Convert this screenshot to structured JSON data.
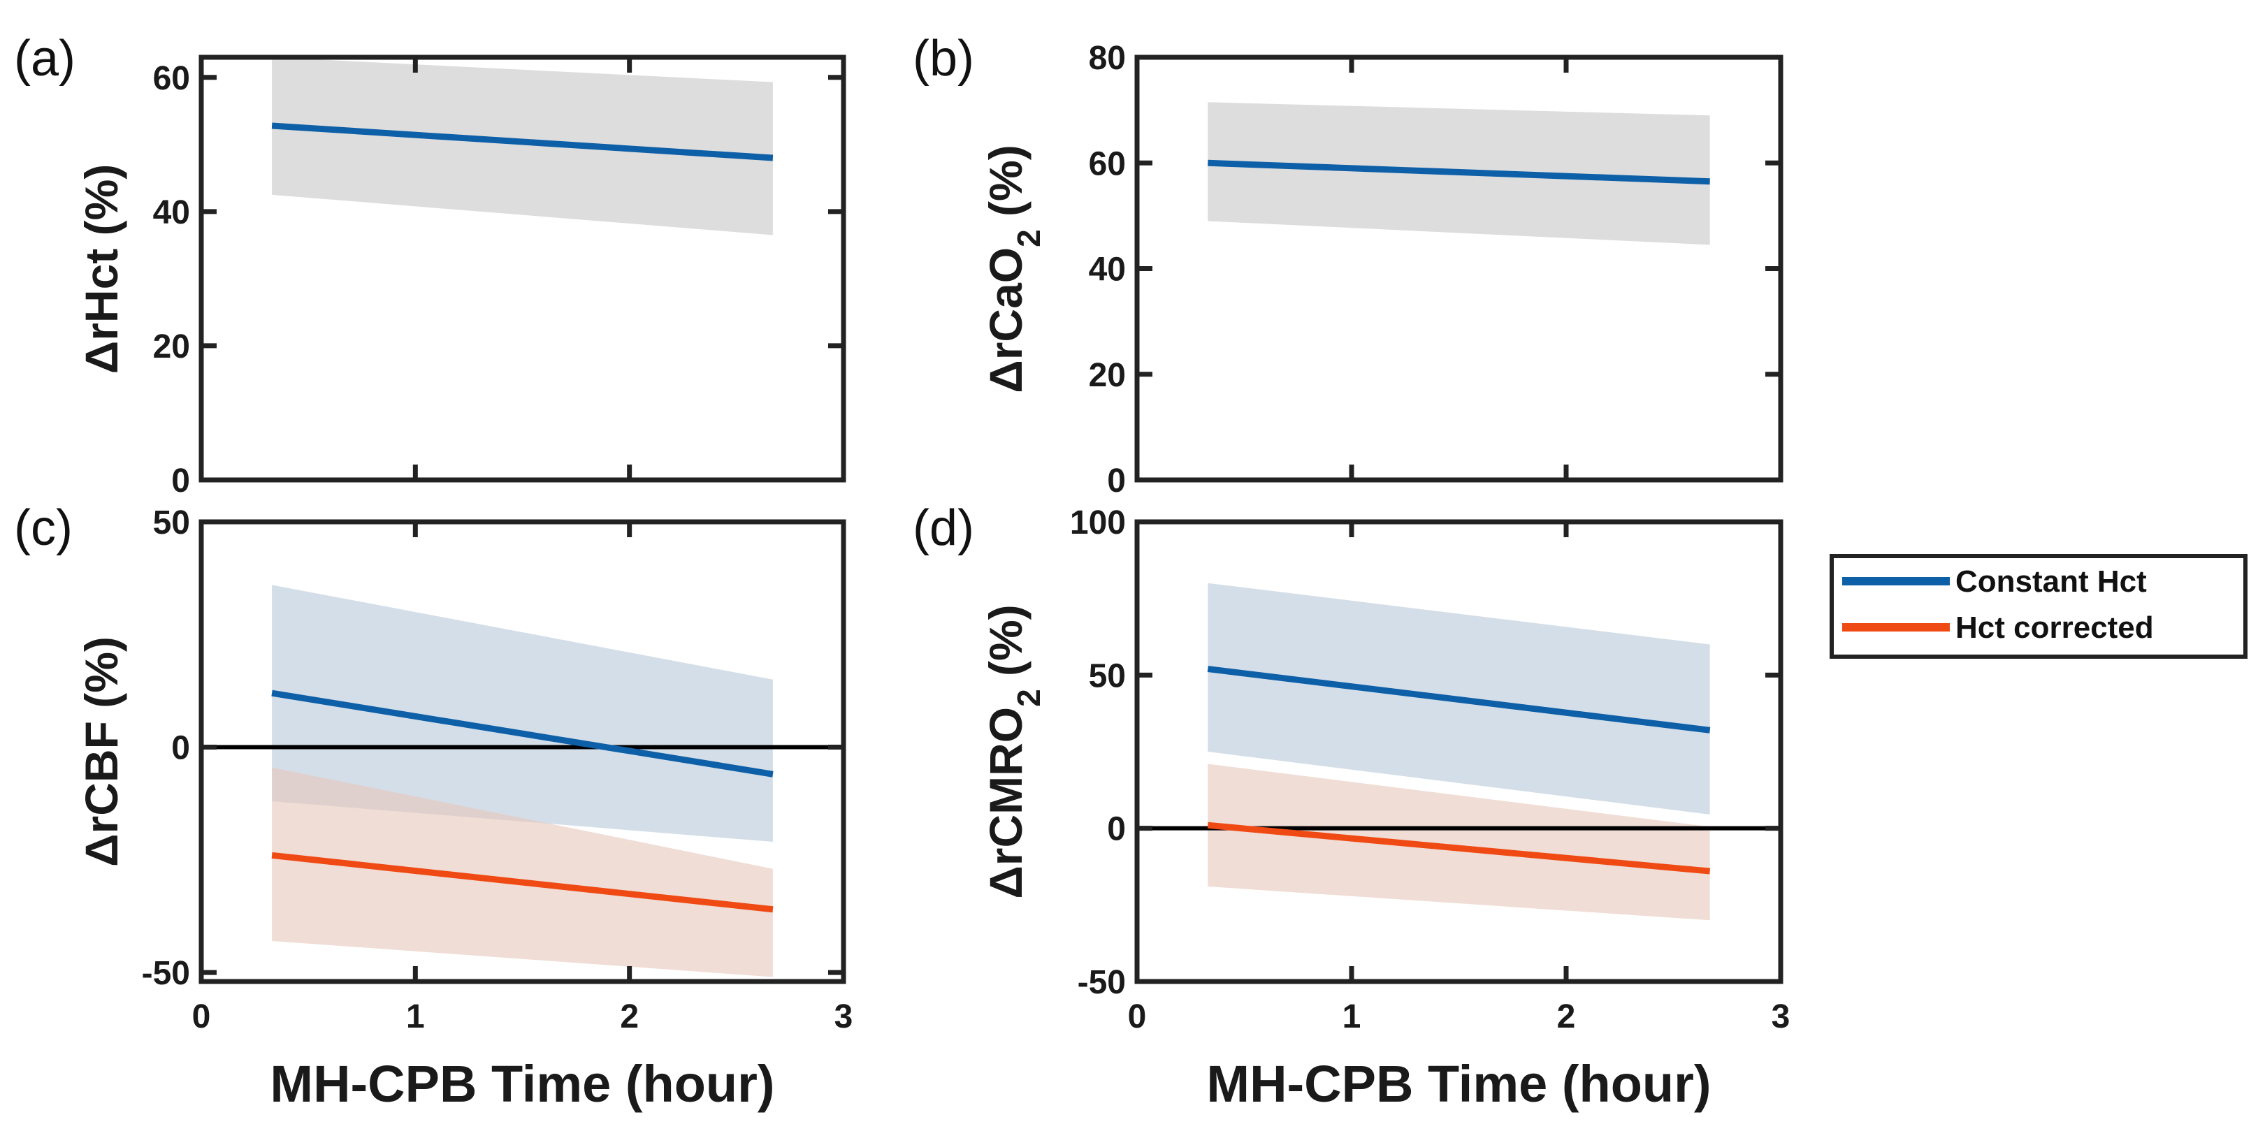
{
  "chart_data": [
    {
      "panel": "(a)",
      "type": "line",
      "ylabel": "ΔrHct (%)",
      "xlabel": "",
      "xlim": [
        0,
        3
      ],
      "ylim": [
        0,
        63
      ],
      "yticks": [
        0,
        20,
        40,
        60
      ],
      "xticks": [
        0,
        1,
        2,
        3
      ],
      "show_xtick_labels": false,
      "series": [
        {
          "color": "#0d5fa8",
          "x": [
            0.33,
            2.67
          ],
          "y": [
            52.8,
            48.0
          ],
          "band": {
            "color": "#c8c8c8",
            "upper": [
              63,
              59.3
            ],
            "lower": [
              42.5,
              36.5
            ]
          }
        }
      ]
    },
    {
      "panel": "(b)",
      "type": "line",
      "ylabel": "ΔrCaO",
      "ylabel_sub": "2",
      "ylabel_suffix": " (%)",
      "xlabel": "",
      "xlim": [
        0,
        3
      ],
      "ylim": [
        0,
        80
      ],
      "yticks": [
        0,
        20,
        40,
        60,
        80
      ],
      "xticks": [
        0,
        1,
        2,
        3
      ],
      "show_xtick_labels": false,
      "series": [
        {
          "color": "#0d5fa8",
          "x": [
            0.33,
            2.67
          ],
          "y": [
            60.0,
            56.5
          ],
          "band": {
            "color": "#c8c8c8",
            "upper": [
              71.5,
              69.0
            ],
            "lower": [
              49.0,
              44.5
            ]
          }
        }
      ]
    },
    {
      "panel": "(c)",
      "type": "line",
      "ylabel": "ΔrCBF (%)",
      "xlabel": "MH-CPB Time (hour)",
      "xlim": [
        0,
        3
      ],
      "ylim": [
        -52,
        50
      ],
      "yticks": [
        -50,
        0,
        50
      ],
      "xticks": [
        0,
        1,
        2,
        3
      ],
      "show_xtick_labels": true,
      "zero_line": true,
      "series": [
        {
          "name": "Constant Hct",
          "color": "#0d5fa8",
          "x": [
            0.33,
            2.67
          ],
          "y": [
            12.0,
            -6.0
          ],
          "band": {
            "color": "#b9c9da",
            "upper": [
              36.0,
              15.0
            ],
            "lower": [
              -12.0,
              -21.0
            ]
          }
        },
        {
          "name": "Hct corrected",
          "color": "#f04a14",
          "x": [
            0.33,
            2.67
          ],
          "y": [
            -24.0,
            -36.0
          ],
          "band": {
            "color": "#e7c8bd",
            "upper": [
              -4.5,
              -27.0
            ],
            "lower": [
              -43.0,
              -51.0
            ]
          }
        }
      ]
    },
    {
      "panel": "(d)",
      "type": "line",
      "ylabel": "ΔrCMRO",
      "ylabel_sub": "2",
      "ylabel_suffix": " (%)",
      "xlabel": "MH-CPB Time (hour)",
      "xlim": [
        0,
        3
      ],
      "ylim": [
        -50,
        100
      ],
      "yticks": [
        -50,
        0,
        50,
        100
      ],
      "xticks": [
        0,
        1,
        2,
        3
      ],
      "show_xtick_labels": true,
      "zero_line": true,
      "series": [
        {
          "name": "Constant Hct",
          "color": "#0d5fa8",
          "x": [
            0.33,
            2.67
          ],
          "y": [
            52.0,
            32.0
          ],
          "band": {
            "color": "#b9c9da",
            "upper": [
              80.0,
              60.0
            ],
            "lower": [
              25.0,
              4.5
            ]
          }
        },
        {
          "name": "Hct corrected",
          "color": "#f04a14",
          "x": [
            0.33,
            2.67
          ],
          "y": [
            1.0,
            -14.0
          ],
          "band": {
            "color": "#e7c8bd",
            "upper": [
              21.0,
              0.5
            ],
            "lower": [
              -19.0,
              -30.0
            ]
          }
        }
      ]
    }
  ],
  "legend": [
    {
      "label": "Constant Hct",
      "color": "#0d5fa8"
    },
    {
      "label": "Hct corrected",
      "color": "#f04a14"
    }
  ]
}
